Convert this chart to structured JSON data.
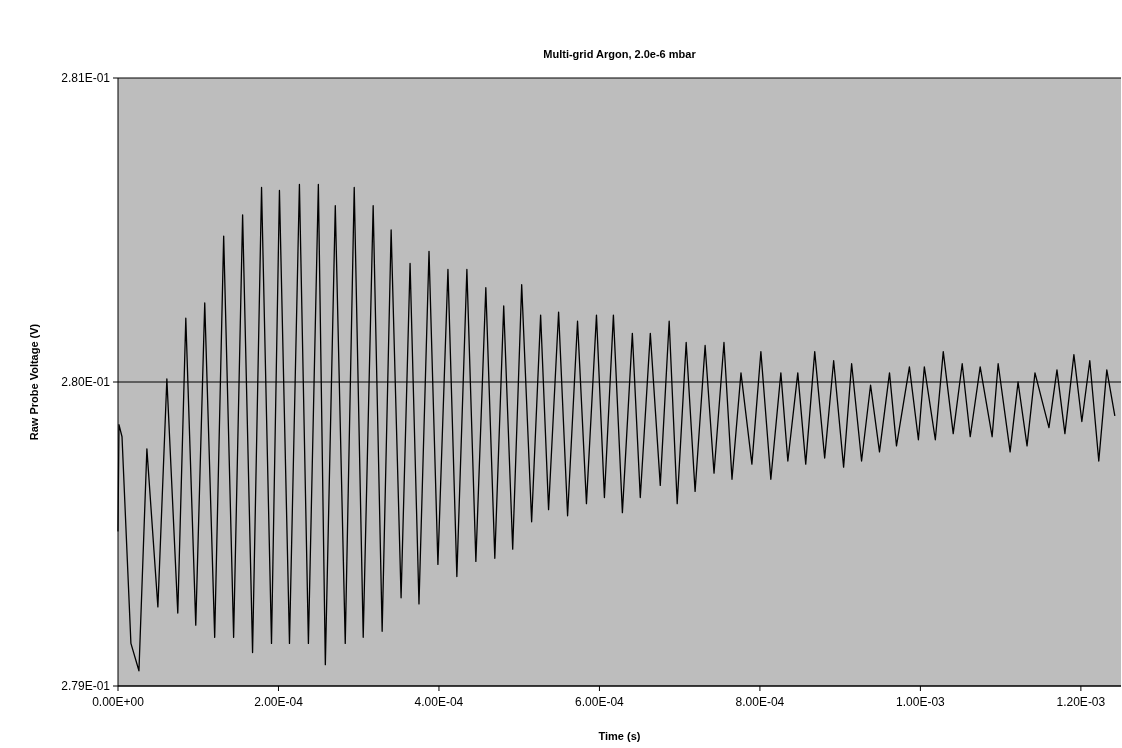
{
  "chart_data": {
    "type": "line",
    "title": "Multi-grid Argon, 2.0e-6 mbar",
    "xlabel": "Time (s)",
    "ylabel": "Raw Probe Voltage (V)",
    "xlim": [
      0,
      0.00125
    ],
    "xticks": [
      {
        "value": 0,
        "label": "0.00E+00"
      },
      {
        "value": 0.0002,
        "label": "2.00E-04"
      },
      {
        "value": 0.0004,
        "label": "4.00E-04"
      },
      {
        "value": 0.0006,
        "label": "6.00E-04"
      },
      {
        "value": 0.0008,
        "label": "8.00E-04"
      },
      {
        "value": 0.001,
        "label": "1.00E-03"
      },
      {
        "value": 0.0012,
        "label": "1.20E-03"
      }
    ],
    "ylim": [
      0.279,
      0.281
    ],
    "yticks": [
      {
        "value": 0.279,
        "label": "2.79E-01"
      },
      {
        "value": 0.28,
        "label": "2.80E-01"
      },
      {
        "value": 0.281,
        "label": "2.81E-01"
      }
    ],
    "grid": "y",
    "marker": "none",
    "line_style": "solid",
    "x": [
      0,
      1.2e-06,
      5e-06,
      1.61e-05,
      2.61e-05,
      3.6e-05,
      4.97e-05,
      6.09e-05,
      7.45e-05,
      8.45e-05,
      9.69e-05,
      0.0001081,
      0.0001205,
      0.0001317,
      0.0001441,
      0.0001553,
      0.0001677,
      0.0001789,
      0.0001913,
      0.0002012,
      0.0002137,
      0.0002261,
      0.0002373,
      0.0002497,
      0.0002584,
      0.0002708,
      0.0002832,
      0.0002944,
      0.0003056,
      0.000318,
      0.0003292,
      0.0003404,
      0.0003528,
      0.000364,
      0.0003751,
      0.0003876,
      0.0003987,
      0.0004112,
      0.0004223,
      0.0004348,
      0.000446,
      0.0004584,
      0.0004696,
      0.0004807,
      0.0004919,
      0.0005031,
      0.0005155,
      0.0005267,
      0.0005366,
      0.0005491,
      0.0005603,
      0.0005727,
      0.0005838,
      0.0005963,
      0.0006062,
      0.0006174,
      0.0006286,
      0.000641,
      0.0006509,
      0.0006634,
      0.0006758,
      0.0006869,
      0.0006969,
      0.0007081,
      0.0007192,
      0.0007317,
      0.0007428,
      0.0007552,
      0.0007652,
      0.0007764,
      0.00079,
      0.0008012,
      0.0008136,
      0.0008261,
      0.0008348,
      0.0008472,
      0.0008571,
      0.0008683,
      0.0008807,
      0.0008919,
      0.0009043,
      0.0009143,
      0.0009267,
      0.0009379,
      0.000949,
      0.0009615,
      0.0009702,
      0.0009863,
      0.0009975,
      0.0010049,
      0.0010186,
      0.0010285,
      0.0010409,
      0.0010521,
      0.0010621,
      0.0010745,
      0.0010894,
      0.0010969,
      0.0011118,
      0.0011217,
      0.0011329,
      0.0011428,
      0.0011602,
      0.0011702,
      0.0011801,
      0.0011913,
      0.0012012,
      0.0012111,
      0.0012223,
      0.0012323,
      0.0012422
    ],
    "series": [
      {
        "color": "#000000",
        "values": [
          0.27951,
          0.27986,
          0.27982,
          0.27914,
          0.27905,
          0.27978,
          0.27926,
          0.28001,
          0.27924,
          0.28021,
          0.2792,
          0.28026,
          0.27916,
          0.28048,
          0.27916,
          0.28055,
          0.27911,
          0.28064,
          0.27914,
          0.28063,
          0.27914,
          0.28065,
          0.27914,
          0.28065,
          0.27907,
          0.28058,
          0.27914,
          0.28064,
          0.27916,
          0.28058,
          0.27918,
          0.2805,
          0.27929,
          0.28039,
          0.27927,
          0.28043,
          0.2794,
          0.28037,
          0.27936,
          0.28037,
          0.27941,
          0.28031,
          0.27942,
          0.28025,
          0.27945,
          0.28032,
          0.27954,
          0.28022,
          0.27958,
          0.28023,
          0.27956,
          0.2802,
          0.2796,
          0.28022,
          0.27962,
          0.28022,
          0.27957,
          0.28016,
          0.27962,
          0.28016,
          0.27966,
          0.2802,
          0.2796,
          0.28013,
          0.27964,
          0.28012,
          0.2797,
          0.28013,
          0.27968,
          0.28003,
          0.27973,
          0.2801,
          0.27968,
          0.28003,
          0.27974,
          0.28003,
          0.27973,
          0.2801,
          0.27975,
          0.28007,
          0.27972,
          0.28006,
          0.27974,
          0.27999,
          0.27977,
          0.28003,
          0.27979,
          0.28005,
          0.27981,
          0.28005,
          0.27981,
          0.2801,
          0.27983,
          0.28006,
          0.27982,
          0.28005,
          0.27982,
          0.28006,
          0.27977,
          0.28,
          0.27979,
          0.28003,
          0.27985,
          0.28004,
          0.27983,
          0.28009,
          0.27987,
          0.28007,
          0.27974,
          0.28004,
          0.27989
        ]
      }
    ]
  }
}
